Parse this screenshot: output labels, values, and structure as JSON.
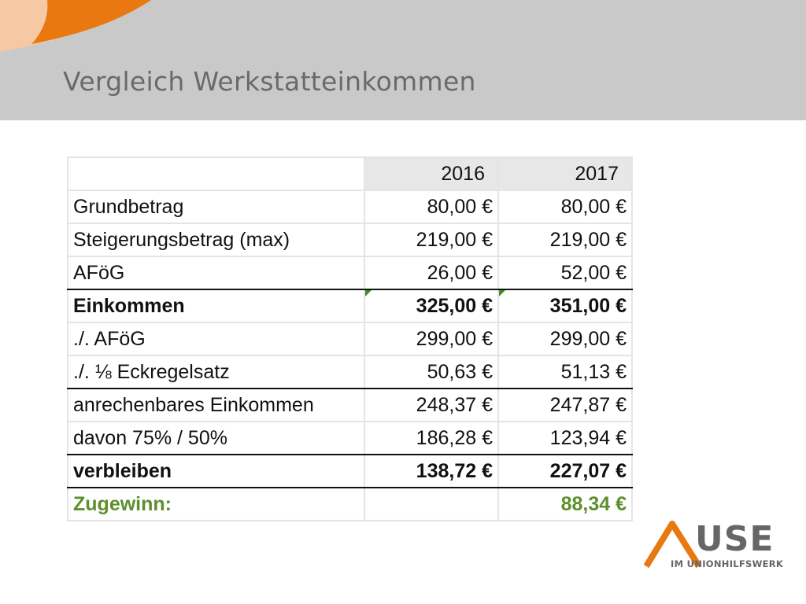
{
  "slide": {
    "title": "Vergleich Werkstatteinkommen"
  },
  "table": {
    "years": [
      "2016",
      "2017"
    ],
    "rows": [
      {
        "label": "Grundbetrag",
        "v2016": "80,00 €",
        "v2017": "80,00 €"
      },
      {
        "label": "Steigerungsbetrag (max)",
        "v2016": "219,00 €",
        "v2017": "219,00 €"
      },
      {
        "label": "AFöG",
        "v2016": "26,00 €",
        "v2017": "52,00 €"
      },
      {
        "label": "Einkommen",
        "v2016": "325,00 €",
        "v2017": "351,00 €"
      },
      {
        "label": "./. AFöG",
        "v2016": "299,00 €",
        "v2017": "299,00 €"
      },
      {
        "label": "./. ⅛ Eckregelsatz",
        "v2016": "50,63 €",
        "v2017": "51,13 €"
      },
      {
        "label": "anrechenbares Einkommen",
        "v2016": "248,37 €",
        "v2017": "247,87 €"
      },
      {
        "label": "davon 75% / 50%",
        "v2016": "186,28 €",
        "v2017": "123,94 €"
      },
      {
        "label": "verbleiben",
        "v2016": "138,72 €",
        "v2017": "227,07 €"
      },
      {
        "label": "Zugewinn:",
        "v2016": "",
        "v2017": "88,34 €"
      }
    ]
  },
  "logo": {
    "name": "USE",
    "subtitle": "IM UNIONHILFSWERK"
  },
  "colors": {
    "header_band": "#c9c9c9",
    "accent_orange": "#e8780f",
    "accent_peach": "#f6c9a4",
    "highlight_green": "#5e8f2c",
    "title_grey": "#6a6a6a"
  }
}
